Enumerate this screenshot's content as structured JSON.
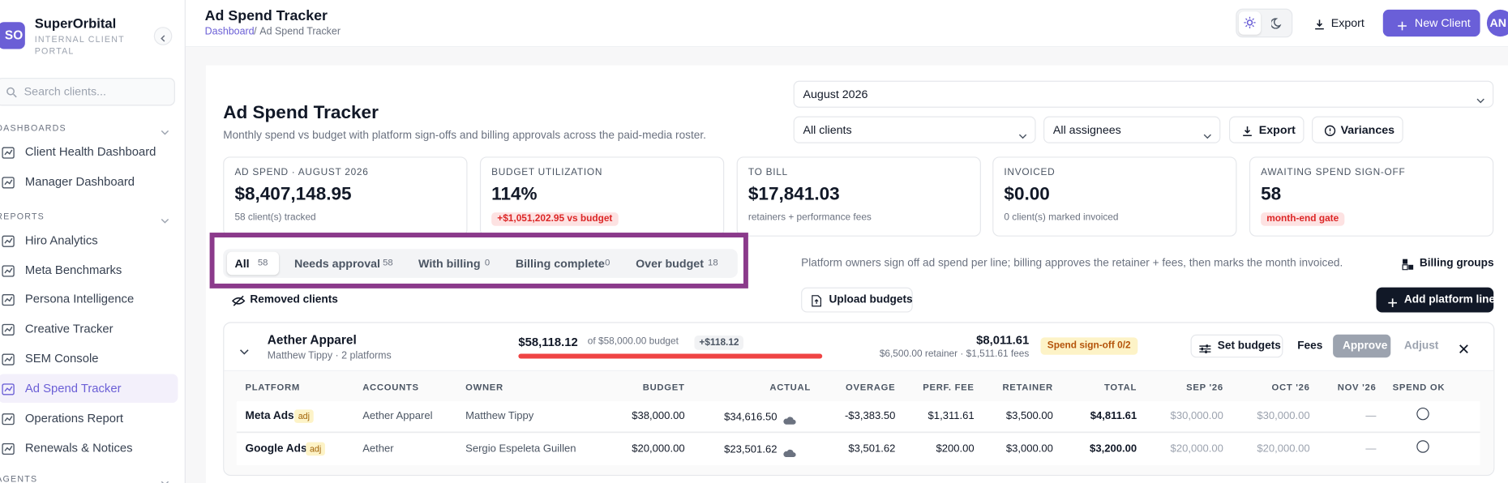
{
  "sidebar": {
    "brand": {
      "initials": "SO",
      "name": "SuperOrbital",
      "subtitle": "INTERNAL CLIENT PORTAL"
    },
    "search_placeholder": "Search clients...",
    "sections": [
      {
        "title": "DASHBOARDS",
        "items": [
          "Client Health Dashboard",
          "Manager Dashboard"
        ]
      },
      {
        "title": "REPORTS",
        "items": [
          "Hiro Analytics",
          "Meta Benchmarks",
          "Persona Intelligence",
          "Creative Tracker",
          "SEM Console",
          "Ad Spend Tracker",
          "Operations Report",
          "Renewals & Notices"
        ]
      },
      {
        "title": "AGENTS",
        "items": []
      }
    ]
  },
  "header": {
    "title": "Ad Spend Tracker",
    "breadcrumb": {
      "parent": "Dashboard",
      "separator": "/",
      "current": "Ad Spend Tracker"
    },
    "export": "Export",
    "new_client": "New Client",
    "avatar": "AN"
  },
  "page": {
    "title": "Ad Spend Tracker",
    "description": "Monthly spend vs budget with platform sign-offs and billing approvals across the paid-media roster.",
    "month": "August 2026",
    "client_filter": "All clients",
    "assignee_filter": "All assignees",
    "export": "Export",
    "variances": "Variances"
  },
  "kpis": [
    {
      "label": "AD SPEND · AUGUST 2026",
      "value": "$8,407,148.95",
      "note": "58 client(s) tracked"
    },
    {
      "label": "BUDGET UTILIZATION",
      "value": "114%",
      "badge": "+$1,051,202.95 vs budget"
    },
    {
      "label": "TO BILL",
      "value": "$17,841.03",
      "note": "retainers + performance fees"
    },
    {
      "label": "INVOICED",
      "value": "$0.00",
      "note": "0 client(s) marked invoiced"
    },
    {
      "label": "AWAITING SPEND SIGN-OFF",
      "value": "58",
      "badge": "month-end gate"
    }
  ],
  "tabs": [
    {
      "label": "All",
      "count": 58
    },
    {
      "label": "Needs approval",
      "count": 58
    },
    {
      "label": "With billing",
      "count": 0
    },
    {
      "label": "Billing complete",
      "count": 0
    },
    {
      "label": "Over budget",
      "count": 18
    }
  ],
  "toolbar": {
    "info": "Platform owners sign off ad spend per line; billing approves the retainer + fees, then marks the month invoiced.",
    "billing_groups": "Billing groups",
    "removed_clients": "Removed clients",
    "upload_budgets": "Upload budgets",
    "add_platform_line": "Add platform line"
  },
  "client": {
    "name": "Aether Apparel",
    "subtitle": "Matthew Tippy · 2 platforms",
    "spend": "$58,118.12",
    "budget_text": "of $58,000.00 budget",
    "overage": "+$118.12",
    "total": "$8,011.61",
    "breakdown": "$6,500.00 retainer · $1,511.61 fees",
    "status": "Spend sign-off 0/2",
    "set_budgets": "Set budgets",
    "fees": "Fees",
    "approve": "Approve",
    "adjust": "Adjust",
    "table": {
      "columns": [
        "PLATFORM",
        "ACCOUNTS",
        "OWNER",
        "BUDGET",
        "ACTUAL",
        "OVERAGE",
        "PERF. FEE",
        "RETAINER",
        "TOTAL",
        "SEP '26",
        "OCT '26",
        "NOV '26",
        "SPEND OK"
      ],
      "rows": [
        {
          "platform": "Meta Ads",
          "tag": "adj",
          "cells": [
            "Aether Apparel",
            "Matthew Tippy",
            "$38,000.00",
            "$34,616.50",
            "-$3,383.50",
            "$1,311.61",
            "$3,500.00",
            "$4,811.61",
            "$30,000.00",
            "$30,000.00",
            "—"
          ]
        },
        {
          "platform": "Google Ads",
          "tag": "adj",
          "cells": [
            "Aether",
            "Sergio Espeleta Guillen",
            "$20,000.00",
            "$23,501.62",
            "$3,501.62",
            "$200.00",
            "$3,000.00",
            "$3,200.00",
            "$20,000.00",
            "$20,000.00",
            "—"
          ]
        }
      ]
    }
  }
}
